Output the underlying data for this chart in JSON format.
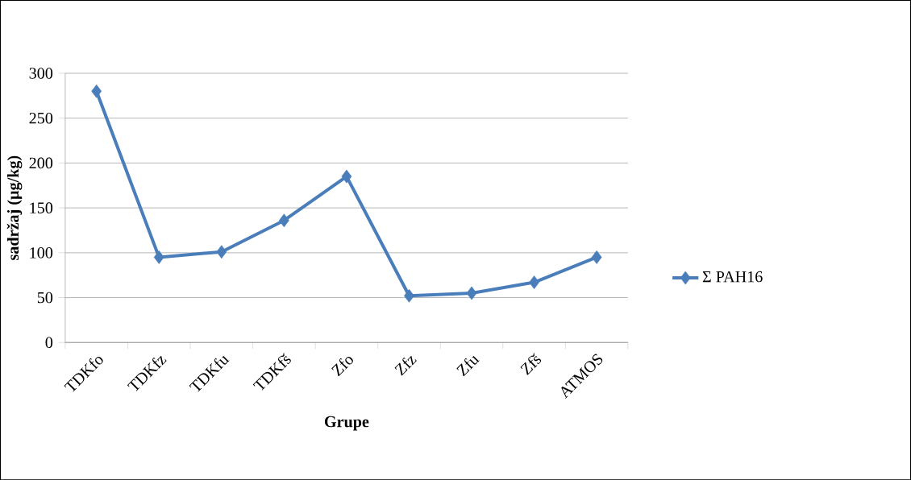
{
  "chart_data": {
    "type": "line",
    "xlabel": "Grupe",
    "ylabel": "sadržaj (µg/kg)",
    "categories": [
      "TDKfo",
      "TDKfz",
      "TDKfu",
      "TDKfš",
      "Zfo",
      "Zfz",
      "Zfu",
      "Zfš",
      "ATMOS"
    ],
    "series": [
      {
        "name": "Σ PAH16",
        "color": "#4a7ebb",
        "values": [
          280,
          95,
          101,
          136,
          185,
          52,
          55,
          67,
          95
        ]
      }
    ],
    "ylim": [
      0,
      300
    ],
    "yticks": [
      0,
      50,
      100,
      150,
      200,
      250,
      300
    ],
    "grid": "y",
    "legend": "right",
    "marker": "diamond",
    "line_style": "solid"
  }
}
